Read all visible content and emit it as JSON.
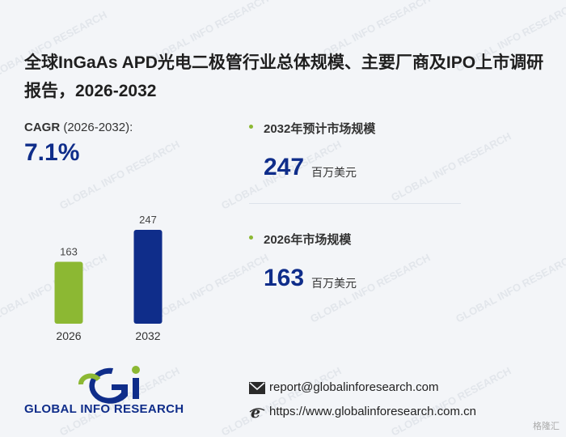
{
  "title": "全球InGaAs APD光电二极管行业总体规模、主要厂商及IPO上市调研报告，2026-2032",
  "cagr": {
    "label": "CAGR",
    "period": " (2026-2032):",
    "value": "7.1%"
  },
  "stats": [
    {
      "label": "2032年预计市场规模",
      "value": "247",
      "unit": "百万美元"
    },
    {
      "label": "2026年市场规模",
      "value": "163",
      "unit": "百万美元"
    }
  ],
  "brand": {
    "name": "GLOBAL INFO RESEARCH",
    "watermark": "GLOBAL INFO RESEARCH",
    "corner": "格隆汇"
  },
  "contact": {
    "email": "report@globalinforesearch.com",
    "website": "https://www.globalinforesearch.com.cn"
  },
  "colors": {
    "bar_2026": "#8cb833",
    "bar_2032": "#0f2d8a",
    "accent": "#0f2d8a"
  },
  "icons": {
    "email": "envelope-icon",
    "web": "browser-e-icon"
  },
  "chart_data": {
    "type": "bar",
    "categories": [
      "2026",
      "2032"
    ],
    "values": [
      163,
      247
    ],
    "ylim": [
      0,
      247
    ],
    "grid": false,
    "legend": "none"
  }
}
